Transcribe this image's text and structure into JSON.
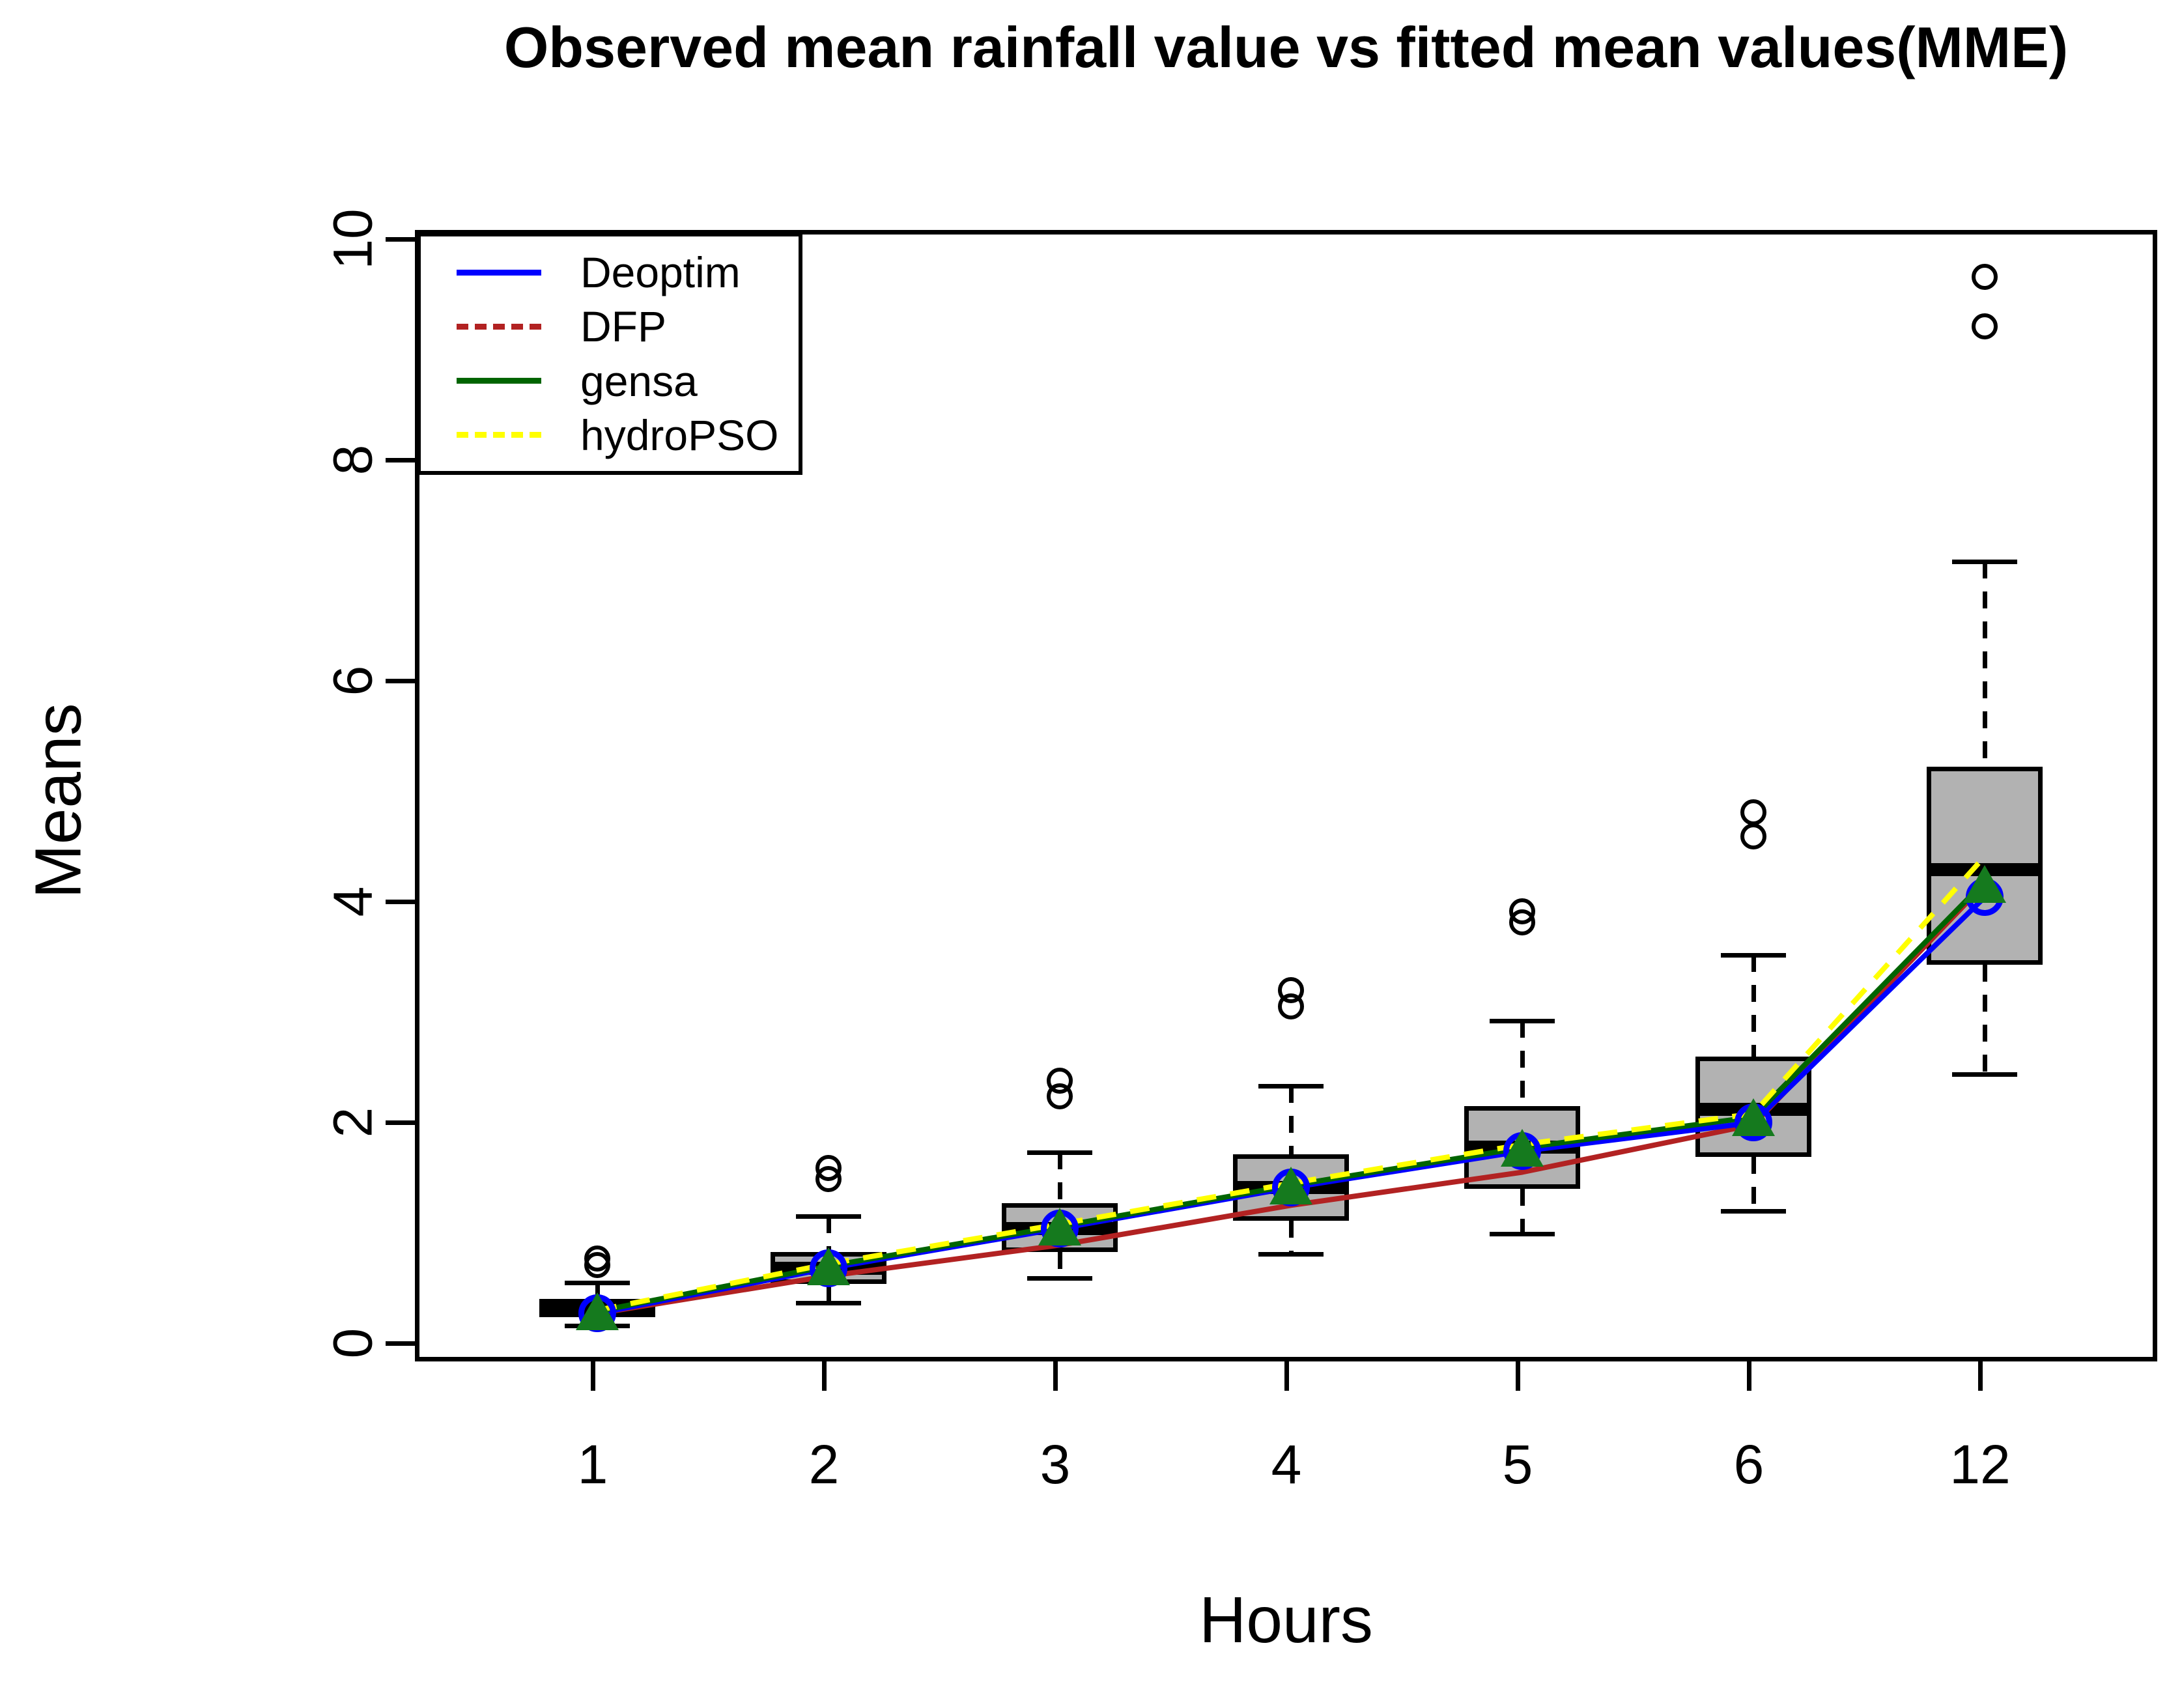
{
  "title": "Observed mean rainfall value vs fitted mean values(MME)",
  "axes": {
    "x_label": "Hours",
    "y_label": "Means",
    "x_tick_labels": [
      "1",
      "2",
      "3",
      "4",
      "5",
      "6",
      "12"
    ],
    "y_ticks": [
      0,
      2,
      4,
      6,
      8,
      10
    ]
  },
  "legend": {
    "items": [
      {
        "label": "Deoptim",
        "color": "#0000ff",
        "dashed": false
      },
      {
        "label": "DFP",
        "color": "#b22222",
        "dashed": true
      },
      {
        "label": "gensa",
        "color": "#006400",
        "dashed": false
      },
      {
        "label": "hydroPSO",
        "color": "#ffff00",
        "dashed": true
      }
    ]
  },
  "chart_data": {
    "type": "boxplot",
    "title": "Observed mean rainfall value vs fitted mean values(MME)",
    "xlabel": "Hours",
    "ylabel": "Means",
    "categories": [
      "1",
      "2",
      "3",
      "4",
      "5",
      "6",
      "12"
    ],
    "ylim": [
      0,
      10
    ],
    "grid": false,
    "legend_position": "top-left",
    "box_fill": "#b2b2b2",
    "boxes": [
      {
        "hour": "1",
        "whisker_low": 0.2,
        "q1": 0.28,
        "median": 0.35,
        "q3": 0.44,
        "whisker_high": 0.59,
        "outliers": [
          0.75,
          0.81
        ]
      },
      {
        "hour": "2",
        "whisker_low": 0.41,
        "q1": 0.58,
        "median": 0.72,
        "q3": 0.87,
        "whisker_high": 1.19,
        "outliers": [
          1.53,
          1.63
        ]
      },
      {
        "hour": "3",
        "whisker_low": 0.63,
        "q1": 0.87,
        "median": 1.08,
        "q3": 1.31,
        "whisker_high": 1.77,
        "outliers": [
          2.28,
          2.42
        ]
      },
      {
        "hour": "4",
        "whisker_low": 0.85,
        "q1": 1.15,
        "median": 1.45,
        "q3": 1.75,
        "whisker_high": 2.37,
        "outliers": [
          3.09,
          3.24
        ]
      },
      {
        "hour": "5",
        "whisker_low": 1.03,
        "q1": 1.44,
        "median": 1.82,
        "q3": 2.19,
        "whisker_high": 2.96,
        "outliers": [
          3.85,
          3.95
        ]
      },
      {
        "hour": "6",
        "whisker_low": 1.24,
        "q1": 1.73,
        "median": 2.16,
        "q3": 2.64,
        "whisker_high": 3.56,
        "outliers": [
          4.63,
          4.85
        ]
      },
      {
        "hour": "12",
        "whisker_low": 2.48,
        "q1": 3.47,
        "median": 4.33,
        "q3": 5.26,
        "whisker_high": 7.12,
        "outliers": [
          9.25,
          9.7
        ]
      }
    ],
    "series": [
      {
        "name": "Deoptim",
        "color": "#0000ff",
        "style": "solid",
        "values": [
          0.31,
          0.72,
          1.08,
          1.45,
          1.78,
          2.04,
          4.08
        ]
      },
      {
        "name": "DFP",
        "color": "#b22222",
        "style": "solid",
        "values": [
          0.31,
          0.65,
          0.93,
          1.29,
          1.59,
          2.02,
          4.2
        ]
      },
      {
        "name": "gensa",
        "color": "#006400",
        "style": "solid",
        "values": [
          0.33,
          0.74,
          1.1,
          1.47,
          1.81,
          2.09,
          4.22
        ]
      },
      {
        "name": "hydroPSO",
        "color": "#ffff00",
        "style": "dashed",
        "values": [
          0.34,
          0.76,
          1.12,
          1.49,
          1.84,
          2.12,
          4.45
        ]
      }
    ],
    "markers": [
      {
        "shape": "circle",
        "color": "#0000ff",
        "values": [
          0.31,
          0.72,
          1.08,
          1.45,
          1.78,
          2.04,
          4.08
        ]
      },
      {
        "shape": "triangle",
        "color": "#157a1e",
        "values": [
          0.33,
          0.74,
          1.1,
          1.47,
          1.81,
          2.09,
          4.2
        ]
      }
    ]
  }
}
